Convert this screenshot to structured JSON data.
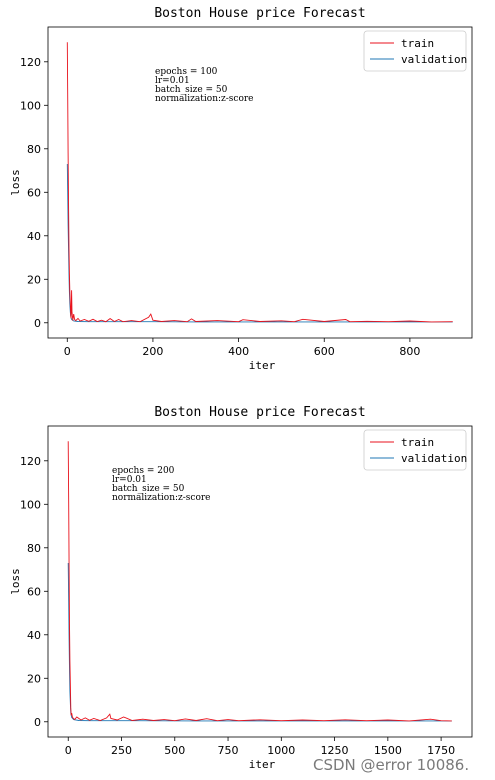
{
  "watermark": "CSDN @error 10086.",
  "colors": {
    "train": "#e8121c",
    "validation": "#1f77b4"
  },
  "chart_data": [
    {
      "type": "line",
      "title": "Boston House price Forecast",
      "xlabel": "iter",
      "ylabel": "loss",
      "xlim": [
        -45,
        945
      ],
      "ylim": [
        -7,
        136
      ],
      "xticks": [
        0,
        200,
        400,
        600,
        800
      ],
      "yticks": [
        0,
        20,
        40,
        60,
        80,
        100,
        120
      ],
      "legend_position": "top-right",
      "annotations": [
        "epochs = 100",
        "lr=0.01",
        "batch_size = 50",
        "normalization:z-score"
      ],
      "series": [
        {
          "name": "train",
          "color": "#e8121c",
          "points": [
            [
              0,
              129
            ],
            [
              1,
              105
            ],
            [
              2,
              78
            ],
            [
              3,
              52
            ],
            [
              4,
              34
            ],
            [
              5,
              23
            ],
            [
              6,
              15
            ],
            [
              7,
              9
            ],
            [
              8,
              4
            ],
            [
              9,
              2
            ],
            [
              10,
              15
            ],
            [
              11,
              5
            ],
            [
              12,
              3
            ],
            [
              13,
              1
            ],
            [
              15,
              4
            ],
            [
              17,
              1.5
            ],
            [
              20,
              1
            ],
            [
              25,
              2
            ],
            [
              30,
              0.8
            ],
            [
              40,
              1.5
            ],
            [
              50,
              0.7
            ],
            [
              60,
              1.6
            ],
            [
              70,
              0.6
            ],
            [
              80,
              1.2
            ],
            [
              90,
              0.5
            ],
            [
              100,
              1.9
            ],
            [
              110,
              0.6
            ],
            [
              120,
              1.5
            ],
            [
              130,
              0.5
            ],
            [
              150,
              1.0
            ],
            [
              170,
              0.5
            ],
            [
              190,
              2.5
            ],
            [
              195,
              4
            ],
            [
              200,
              1.2
            ],
            [
              220,
              0.6
            ],
            [
              250,
              1.0
            ],
            [
              280,
              0.5
            ],
            [
              290,
              1.8
            ],
            [
              300,
              0.6
            ],
            [
              350,
              1.0
            ],
            [
              400,
              0.5
            ],
            [
              410,
              1.4
            ],
            [
              450,
              0.6
            ],
            [
              500,
              0.9
            ],
            [
              530,
              0.5
            ],
            [
              550,
              1.6
            ],
            [
              600,
              0.6
            ],
            [
              650,
              1.5
            ],
            [
              660,
              0.5
            ],
            [
              700,
              0.7
            ],
            [
              750,
              0.5
            ],
            [
              800,
              0.8
            ],
            [
              850,
              0.4
            ],
            [
              900,
              0.5
            ]
          ]
        },
        {
          "name": "validation",
          "color": "#1f77b4",
          "points": [
            [
              0,
              73
            ],
            [
              1,
              60
            ],
            [
              2,
              45
            ],
            [
              3,
              32
            ],
            [
              4,
              22
            ],
            [
              5,
              14
            ],
            [
              6,
              9
            ],
            [
              7,
              5
            ],
            [
              8,
              3
            ],
            [
              10,
              1.5
            ],
            [
              15,
              0.8
            ],
            [
              25,
              0.6
            ],
            [
              50,
              0.5
            ],
            [
              100,
              0.5
            ],
            [
              200,
              0.5
            ],
            [
              300,
              0.4
            ],
            [
              400,
              0.4
            ],
            [
              500,
              0.4
            ],
            [
              600,
              0.4
            ],
            [
              700,
              0.4
            ],
            [
              800,
              0.4
            ],
            [
              900,
              0.4
            ]
          ]
        }
      ]
    },
    {
      "type": "line",
      "title": "Boston House price Forecast",
      "xlabel": "iter",
      "ylabel": "loss",
      "xlim": [
        -95,
        1895
      ],
      "ylim": [
        -7,
        136
      ],
      "xticks": [
        0,
        250,
        500,
        750,
        1000,
        1250,
        1500,
        1750
      ],
      "yticks": [
        0,
        20,
        40,
        60,
        80,
        100,
        120
      ],
      "legend_position": "top-right",
      "annotations": [
        "epochs = 200",
        "lr=0.01",
        "batch_size = 50",
        "normalization:z-score"
      ],
      "series": [
        {
          "name": "train",
          "color": "#e8121c",
          "points": [
            [
              0,
              129
            ],
            [
              2,
              100
            ],
            [
              4,
              70
            ],
            [
              6,
              45
            ],
            [
              8,
              28
            ],
            [
              10,
              16
            ],
            [
              12,
              6
            ],
            [
              14,
              3
            ],
            [
              16,
              4
            ],
            [
              20,
              2
            ],
            [
              30,
              1
            ],
            [
              40,
              2.2
            ],
            [
              60,
              0.8
            ],
            [
              80,
              1.8
            ],
            [
              100,
              0.7
            ],
            [
              120,
              1.5
            ],
            [
              150,
              0.6
            ],
            [
              180,
              1.8
            ],
            [
              195,
              3.5
            ],
            [
              200,
              1.5
            ],
            [
              230,
              0.8
            ],
            [
              260,
              2.2
            ],
            [
              300,
              0.6
            ],
            [
              350,
              1.2
            ],
            [
              400,
              0.6
            ],
            [
              450,
              1.0
            ],
            [
              500,
              0.5
            ],
            [
              550,
              1.3
            ],
            [
              600,
              0.6
            ],
            [
              650,
              1.4
            ],
            [
              700,
              0.5
            ],
            [
              750,
              1.0
            ],
            [
              800,
              0.5
            ],
            [
              900,
              0.9
            ],
            [
              1000,
              0.5
            ],
            [
              1100,
              0.8
            ],
            [
              1200,
              0.5
            ],
            [
              1300,
              0.9
            ],
            [
              1400,
              0.5
            ],
            [
              1500,
              0.8
            ],
            [
              1600,
              0.4
            ],
            [
              1700,
              1.2
            ],
            [
              1750,
              0.5
            ],
            [
              1800,
              0.4
            ]
          ]
        },
        {
          "name": "validation",
          "color": "#1f77b4",
          "points": [
            [
              0,
              73
            ],
            [
              2,
              55
            ],
            [
              4,
              38
            ],
            [
              6,
              24
            ],
            [
              8,
              14
            ],
            [
              10,
              8
            ],
            [
              12,
              4
            ],
            [
              16,
              2
            ],
            [
              25,
              1
            ],
            [
              50,
              0.6
            ],
            [
              100,
              0.5
            ],
            [
              300,
              0.5
            ],
            [
              600,
              0.4
            ],
            [
              900,
              0.4
            ],
            [
              1200,
              0.4
            ],
            [
              1500,
              0.4
            ],
            [
              1800,
              0.4
            ]
          ]
        }
      ]
    }
  ]
}
